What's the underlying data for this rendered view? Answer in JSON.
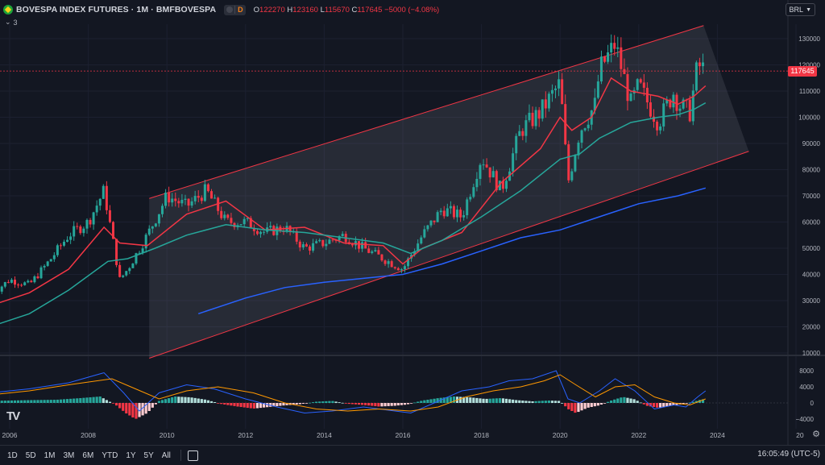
{
  "header": {
    "title": "BOVESPA INDEX FUTURES · 1M · BMFBOVESPA",
    "badge": "D",
    "o_label": "O",
    "o_value": "122270",
    "h_label": "H",
    "h_value": "123160",
    "l_label": "L",
    "l_value": "115670",
    "c_label": "C",
    "c_value": "117645",
    "change": "−5000 (−4.08%)",
    "indicators_count": "3"
  },
  "currency": "BRL",
  "last_price": "117645",
  "colors": {
    "background": "#131722",
    "up": "#26a69a",
    "down": "#f23645",
    "ma_red": "#f23645",
    "ma_green": "#26a69a",
    "ma_blue": "#2962ff",
    "macd": "#2962ff",
    "signal": "#ff9800",
    "channel": "#f23645"
  },
  "icons": {
    "flag": "brazil-flag-icon",
    "chevron": "chevron-down-icon",
    "calendar": "calendar-range-icon",
    "settings": "gear-icon",
    "logo": "tradingview-logo-icon"
  },
  "chart_data": [
    {
      "type": "candlestick",
      "title": "BOVESPA INDEX FUTURES · 1M · BMFBOVESPA",
      "x_ticks": [
        "2006",
        "2008",
        "2010",
        "2012",
        "2014",
        "2016",
        "2018",
        "2020",
        "2022",
        "2024",
        "20"
      ],
      "y_ticks": [
        "130000",
        "120000",
        "110000",
        "100000",
        "90000",
        "80000",
        "70000",
        "60000",
        "50000",
        "40000",
        "30000",
        "20000",
        "10000"
      ],
      "ylim": [
        10000,
        130000
      ],
      "last": 117645,
      "close_series": {
        "dates": [
          2005.5,
          2006.0,
          2006.5,
          2007.0,
          2007.5,
          2008.0,
          2008.4,
          2008.8,
          2009.0,
          2009.5,
          2010.0,
          2010.5,
          2011.0,
          2011.5,
          2012.0,
          2012.5,
          2013.0,
          2013.5,
          2014.0,
          2014.5,
          2015.0,
          2015.5,
          2016.0,
          2016.5,
          2017.0,
          2017.5,
          2018.0,
          2018.5,
          2019.0,
          2019.5,
          2020.0,
          2020.2,
          2020.5,
          2020.9,
          2021.0,
          2021.4,
          2021.8,
          2022.0,
          2022.5,
          2022.9,
          2023.0,
          2023.3,
          2023.5,
          2023.7
        ],
        "values": [
          32000,
          38000,
          36000,
          45000,
          55000,
          60000,
          72000,
          38000,
          42000,
          55000,
          70000,
          66000,
          72000,
          60000,
          60000,
          56000,
          58000,
          50000,
          52000,
          55000,
          50000,
          46000,
          42000,
          55000,
          65000,
          62000,
          85000,
          72000,
          95000,
          102000,
          113000,
          75000,
          95000,
          105000,
          118000,
          128000,
          105000,
          112000,
          98000,
          110000,
          105000,
          102000,
          120000,
          117645
        ]
      },
      "moving_averages": [
        {
          "color": "red",
          "dates": [
            2005.5,
            2006.5,
            2007.5,
            2008.4,
            2008.8,
            2009.5,
            2010.5,
            2011.5,
            2012.5,
            2013.5,
            2014.5,
            2015.5,
            2016.0,
            2016.5,
            2017.5,
            2018.5,
            2019.5,
            2020.0,
            2020.3,
            2020.8,
            2021.3,
            2021.8,
            2022.5,
            2023.0,
            2023.4,
            2023.7
          ],
          "values": [
            28000,
            33000,
            42000,
            58000,
            52000,
            51000,
            63000,
            68000,
            57000,
            58000,
            52000,
            51000,
            44000,
            50000,
            56000,
            75000,
            88000,
            100000,
            95000,
            100000,
            115000,
            110000,
            108000,
            105000,
            108000,
            112000
          ]
        },
        {
          "color": "green",
          "dates": [
            2005.5,
            2006.5,
            2007.5,
            2008.5,
            2009.0,
            2009.7,
            2010.5,
            2011.5,
            2012.5,
            2013.5,
            2014.5,
            2015.5,
            2016.2,
            2017.0,
            2018.0,
            2019.0,
            2020.0,
            2020.5,
            2021.0,
            2021.8,
            2022.5,
            2023.0,
            2023.4,
            2023.7
          ],
          "values": [
            20000,
            25000,
            34000,
            45000,
            46000,
            50000,
            55000,
            59000,
            57000,
            56000,
            54000,
            52000,
            48000,
            53000,
            62000,
            72000,
            84000,
            86000,
            92000,
            98000,
            100000,
            101000,
            103000,
            105500
          ]
        },
        {
          "color": "blue",
          "dates": [
            2010.8,
            2012.0,
            2013.0,
            2014.0,
            2015.0,
            2016.0,
            2017.0,
            2018.0,
            2019.0,
            2020.0,
            2021.0,
            2022.0,
            2023.0,
            2023.7
          ],
          "values": [
            25000,
            31000,
            35000,
            37000,
            38500,
            40000,
            44000,
            49000,
            54000,
            57000,
            62000,
            67000,
            70000,
            73000
          ]
        }
      ],
      "channel": {
        "upper": {
          "from": [
            2009.55,
            69000
          ],
          "to": [
            2023.65,
            135000
          ]
        },
        "lower": {
          "from": [
            2009.55,
            8000
          ],
          "to": [
            2024.8,
            87000
          ]
        }
      }
    },
    {
      "type": "macd",
      "y_ticks": [
        "8000",
        "4000",
        "0",
        "−4000"
      ],
      "ylim": [
        -4000,
        8000
      ],
      "macd_line": {
        "dates": [
          2005.5,
          2006.5,
          2007.5,
          2008.4,
          2008.9,
          2009.3,
          2009.8,
          2010.5,
          2011.2,
          2012.0,
          2012.8,
          2013.5,
          2014.2,
          2015.0,
          2015.8,
          2016.2,
          2016.8,
          2017.5,
          2018.2,
          2018.7,
          2019.3,
          2019.9,
          2020.2,
          2020.5,
          2021.0,
          2021.4,
          2021.9,
          2022.4,
          2022.9,
          2023.2,
          2023.5,
          2023.7
        ],
        "values": [
          2500,
          3500,
          5000,
          7500,
          2500,
          -2000,
          2500,
          4500,
          3500,
          1000,
          -1000,
          -2500,
          -2000,
          -1000,
          -2000,
          -2500,
          0,
          3000,
          4000,
          5500,
          6000,
          8000,
          1000,
          0,
          3000,
          6000,
          3000,
          -1500,
          -500,
          -1000,
          1500,
          3000
        ]
      },
      "signal_line": {
        "dates": [
          2005.5,
          2006.5,
          2007.5,
          2008.6,
          2009.2,
          2009.8,
          2010.5,
          2011.3,
          2012.2,
          2013.0,
          2013.8,
          2014.6,
          2015.4,
          2016.2,
          2016.9,
          2017.6,
          2018.3,
          2019.0,
          2019.6,
          2020.0,
          2020.4,
          2020.9,
          2021.4,
          2021.9,
          2022.4,
          2022.9,
          2023.3,
          2023.7
        ],
        "values": [
          2000,
          3000,
          4500,
          6000,
          3500,
          1000,
          3000,
          4000,
          2500,
          0,
          -1500,
          -2000,
          -1500,
          -2000,
          -1000,
          1500,
          3000,
          4000,
          5500,
          7000,
          4500,
          1500,
          4000,
          4500,
          1500,
          0,
          -500,
          1000
        ]
      },
      "histogram": {
        "dates": [
          2005.5,
          2006.5,
          2007.2,
          2007.8,
          2008.3,
          2008.7,
          2008.95,
          2009.2,
          2009.5,
          2009.8,
          2010.2,
          2010.6,
          2011.0,
          2011.4,
          2011.8,
          2012.2,
          2012.6,
          2013.0,
          2013.4,
          2013.8,
          2014.2,
          2014.6,
          2015.0,
          2015.4,
          2015.8,
          2016.1,
          2016.5,
          2016.9,
          2017.3,
          2017.7,
          2018.1,
          2018.5,
          2018.9,
          2019.3,
          2019.7,
          2020.0,
          2020.2,
          2020.4,
          2020.7,
          2021.0,
          2021.3,
          2021.6,
          2021.9,
          2022.2,
          2022.5,
          2022.8,
          2023.1,
          2023.4,
          2023.6
        ],
        "values": [
          500,
          700,
          800,
          1200,
          1600,
          -500,
          -2500,
          -4000,
          -2500,
          500,
          1600,
          1400,
          800,
          -300,
          -900,
          -1400,
          -1000,
          -600,
          -300,
          300,
          500,
          -200,
          -500,
          -900,
          -700,
          -400,
          600,
          1200,
          1600,
          1400,
          1000,
          1200,
          700,
          400,
          600,
          500,
          -1500,
          -2500,
          -1200,
          -600,
          600,
          1500,
          900,
          -700,
          -1200,
          -700,
          -300,
          300,
          900
        ]
      }
    }
  ],
  "time_ranges": [
    "1D",
    "5D",
    "1M",
    "3M",
    "6M",
    "YTD",
    "1Y",
    "5Y",
    "All"
  ],
  "clock": "16:05:49 (UTC-5)"
}
